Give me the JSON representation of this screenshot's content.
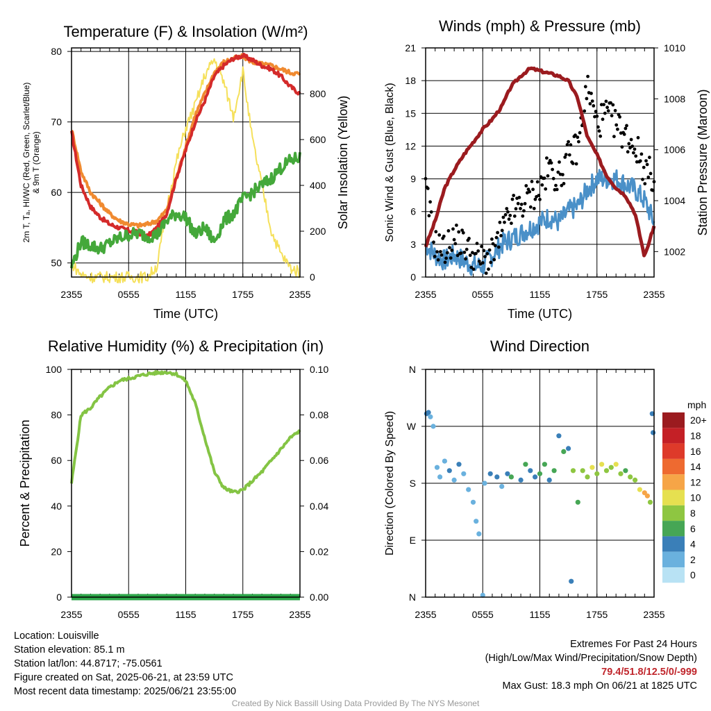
{
  "charts": {
    "temp": {
      "title": "Temperature (F) & Insolation (W/m²)",
      "ylabel_left": "2m T, Tₐ, HI/WC (Red, Green, Scarlet/Blue) & 9m T (Orange)",
      "ylabel_left_line1": "2m T, Tₐ, HI/WC (Red, Green, Scarlet/Blue)",
      "ylabel_left_line2": "& 9m T (Orange)",
      "ylabel_right": "Solar Insolation (Yellow)",
      "xlabel": "Time (UTC)",
      "xticks": [
        "2355",
        "0555",
        "1155",
        "1755",
        "2355"
      ],
      "yticks_left": [
        "50",
        "60",
        "70",
        "80"
      ],
      "yticks_right": [
        "0",
        "200",
        "400",
        "600",
        "800"
      ]
    },
    "wind": {
      "title": "Winds (mph) & Pressure (mb)",
      "ylabel_left": "Sonic Wind & Gust (Blue, Black)",
      "ylabel_right": "Station Pressure (Maroon)",
      "xlabel": "Time (UTC)",
      "xticks": [
        "2355",
        "0555",
        "1155",
        "1755",
        "2355"
      ],
      "yticks_left": [
        "0",
        "3",
        "6",
        "9",
        "12",
        "15",
        "18",
        "21"
      ],
      "yticks_right": [
        "1002",
        "1004",
        "1006",
        "1008",
        "1010"
      ]
    },
    "rh": {
      "title": "Relative Humidity (%) & Precipitation (in)",
      "ylabel_left": "Percent & Precipitation",
      "xticks": [
        "2355",
        "0555",
        "1155",
        "1755",
        "2355"
      ],
      "yticks_left": [
        "0",
        "20",
        "40",
        "60",
        "80",
        "100"
      ],
      "yticks_right": [
        "0.00",
        "0.02",
        "0.04",
        "0.06",
        "0.08",
        "0.10"
      ]
    },
    "dir": {
      "title": "Wind Direction",
      "ylabel_left": "Direction (Colored By Speed)",
      "xticks": [
        "2355",
        "0555",
        "1155",
        "1755",
        "2355"
      ],
      "yticks_left": [
        "N",
        "E",
        "S",
        "W",
        "N"
      ],
      "legend_title": "mph",
      "legend_labels": [
        "20+",
        "18",
        "16",
        "14",
        "12",
        "10",
        "8",
        "6",
        "4",
        "2",
        "0"
      ],
      "legend_colors": [
        "#9b1b1f",
        "#c42026",
        "#de3a2a",
        "#ee6a30",
        "#f6a547",
        "#e6e050",
        "#8ec641",
        "#46a655",
        "#3a7fb8",
        "#6ab1de",
        "#b8e2f4"
      ]
    }
  },
  "chart_data": [
    {
      "type": "line",
      "title": "Temperature (F) & Insolation (W/m²)",
      "xlabel": "Time (UTC)",
      "ylabel": "2m T, Tₐ, HI/WC (Red, Green, Scarlet/Blue) & 9m T (Orange)",
      "y2label": "Solar Insolation (Yellow)",
      "x": [
        0,
        1,
        2,
        3,
        4,
        5,
        6,
        7,
        8,
        9,
        10,
        11,
        12,
        13,
        14,
        15,
        16,
        17,
        18,
        19,
        20,
        21,
        22,
        23,
        24
      ],
      "xlim": [
        0,
        24
      ],
      "ylim": [
        48,
        80.5
      ],
      "y2lim": [
        0,
        1000
      ],
      "series": [
        {
          "color": "#d42a2a",
          "axis": "left",
          "values": [
            68.5,
            61,
            58,
            56.5,
            55.5,
            55,
            54.6,
            54.3,
            53.8,
            55,
            57,
            62,
            66,
            70,
            73,
            76.5,
            78,
            79,
            79.4,
            78.8,
            78,
            77.5,
            76.5,
            75,
            74
          ]
        },
        {
          "color": "#f08a30",
          "axis": "left",
          "values": [
            69,
            63,
            60,
            58.5,
            57,
            56,
            55.5,
            55.3,
            55.5,
            56,
            57.5,
            62,
            66.5,
            71,
            74,
            77,
            78.5,
            79,
            79.3,
            78.5,
            78.2,
            78,
            77.5,
            77,
            76.8
          ]
        },
        {
          "color": "#44a83a",
          "axis": "left",
          "values": [
            49.5,
            53,
            52.5,
            52,
            52.8,
            53.5,
            54,
            54.2,
            53.8,
            54,
            56,
            57,
            56.5,
            54,
            55,
            53,
            56,
            57,
            59,
            60,
            61,
            62,
            63.5,
            64.5,
            65
          ]
        },
        {
          "color": "#f5e05a",
          "axis": "right",
          "values": [
            60,
            10,
            0,
            0,
            0,
            0,
            0,
            0,
            0,
            50,
            300,
            500,
            650,
            750,
            880,
            950,
            850,
            700,
            900,
            600,
            400,
            200,
            100,
            40,
            20
          ]
        }
      ]
    },
    {
      "type": "line",
      "title": "Winds (mph) & Pressure (mb)",
      "xlabel": "Time (UTC)",
      "ylabel": "Sonic Wind & Gust (Blue, Black)",
      "y2label": "Station Pressure (Maroon)",
      "x": [
        0,
        1,
        2,
        3,
        4,
        5,
        6,
        7,
        8,
        9,
        10,
        11,
        12,
        13,
        14,
        15,
        16,
        17,
        18,
        19,
        20,
        21,
        22,
        23,
        24
      ],
      "xlim": [
        0,
        24
      ],
      "ylim": [
        0,
        21
      ],
      "y2lim": [
        1001,
        1010
      ],
      "series": [
        {
          "name": "",
          "color": "#4a90c8",
          "axis": "left",
          "values": [
            3,
            2,
            1.5,
            2,
            1.5,
            1,
            1,
            2,
            3,
            3.5,
            4,
            4.5,
            5,
            5.5,
            5,
            6,
            6.5,
            8,
            9,
            9,
            9,
            8.5,
            8,
            7,
            5
          ]
        },
        {
          "name": "",
          "color": "#000000",
          "axis": "left",
          "marker": "dot",
          "values": [
            8,
            3,
            2.5,
            3.5,
            3,
            2,
            1.5,
            2,
            4,
            6,
            6.5,
            7.5,
            8,
            10,
            9,
            11,
            12,
            17.5,
            14,
            15,
            14,
            13,
            12,
            10,
            9
          ]
        },
        {
          "name": "",
          "color": "#9b1b1f",
          "axis": "right",
          "values": [
            1002.2,
            1003.2,
            1004.5,
            1005.2,
            1005.8,
            1006.3,
            1006.8,
            1007.2,
            1007.7,
            1008.5,
            1008.9,
            1009.2,
            1009.1,
            1009.0,
            1008.9,
            1008.7,
            1008.0,
            1006.5,
            1005.8,
            1005.0,
            1004.5,
            1004.2,
            1003.5,
            1001.8,
            1003.0
          ]
        }
      ]
    },
    {
      "type": "line",
      "title": "Relative Humidity (%) & Precipitation (in)",
      "ylabel": "Percent & Precipitation",
      "x": [
        0,
        1,
        2,
        3,
        4,
        5,
        6,
        7,
        8,
        9,
        10,
        11,
        12,
        13,
        14,
        15,
        16,
        17,
        18,
        19,
        20,
        21,
        22,
        23,
        24
      ],
      "xlim": [
        0,
        24
      ],
      "ylim": [
        0,
        100
      ],
      "y2lim": [
        0,
        0.1
      ],
      "series": [
        {
          "color": "#84c444",
          "axis": "left",
          "values": [
            50,
            80,
            83,
            88,
            92,
            95,
            96,
            97,
            98,
            98.5,
            98.8,
            98,
            95,
            85,
            70,
            55,
            48,
            46,
            47,
            51,
            55,
            60,
            65,
            70,
            73
          ]
        },
        {
          "color": "#2ea64a",
          "axis": "right",
          "values": [
            0,
            0,
            0,
            0,
            0,
            0,
            0,
            0,
            0,
            0,
            0,
            0,
            0,
            0,
            0,
            0,
            0,
            0,
            0,
            0,
            0,
            0,
            0,
            0,
            0
          ]
        }
      ]
    },
    {
      "type": "scatter",
      "title": "Wind Direction",
      "ylabel": "Direction (Colored By Speed)",
      "xlim": [
        0,
        24
      ],
      "ylim": [
        0,
        360
      ],
      "points": [
        {
          "x": 0.1,
          "y": 290,
          "spd": 4
        },
        {
          "x": 0.3,
          "y": 292,
          "spd": 3
        },
        {
          "x": 0.5,
          "y": 285,
          "spd": 2
        },
        {
          "x": 0.8,
          "y": 270,
          "spd": 1
        },
        {
          "x": 1.2,
          "y": 205,
          "spd": 1
        },
        {
          "x": 1.5,
          "y": 190,
          "spd": 2
        },
        {
          "x": 2,
          "y": 215,
          "spd": 2
        },
        {
          "x": 2.5,
          "y": 200,
          "spd": 3
        },
        {
          "x": 3,
          "y": 185,
          "spd": 1
        },
        {
          "x": 3.5,
          "y": 210,
          "spd": 4
        },
        {
          "x": 4,
          "y": 195,
          "spd": 2
        },
        {
          "x": 4.5,
          "y": 170,
          "spd": 1
        },
        {
          "x": 5,
          "y": 150,
          "spd": 1
        },
        {
          "x": 5.3,
          "y": 120,
          "spd": 2
        },
        {
          "x": 5.6,
          "y": 100,
          "spd": 1
        },
        {
          "x": 6,
          "y": 3,
          "spd": 1
        },
        {
          "x": 6.2,
          "y": 180,
          "spd": 2
        },
        {
          "x": 6.8,
          "y": 195,
          "spd": 3
        },
        {
          "x": 7.5,
          "y": 190,
          "spd": 4
        },
        {
          "x": 8,
          "y": 175,
          "spd": 2
        },
        {
          "x": 8.6,
          "y": 195,
          "spd": 4
        },
        {
          "x": 9,
          "y": 190,
          "spd": 5
        },
        {
          "x": 10,
          "y": 185,
          "spd": 4
        },
        {
          "x": 10.5,
          "y": 210,
          "spd": 5
        },
        {
          "x": 11,
          "y": 200,
          "spd": 3
        },
        {
          "x": 11.5,
          "y": 190,
          "spd": 4
        },
        {
          "x": 12,
          "y": 195,
          "spd": 5
        },
        {
          "x": 12.5,
          "y": 210,
          "spd": 6
        },
        {
          "x": 13,
          "y": 185,
          "spd": 4
        },
        {
          "x": 13.5,
          "y": 200,
          "spd": 5
        },
        {
          "x": 14,
          "y": 255,
          "spd": 4
        },
        {
          "x": 14.5,
          "y": 230,
          "spd": 5
        },
        {
          "x": 15,
          "y": 235,
          "spd": 4
        },
        {
          "x": 15.3,
          "y": 25,
          "spd": 4
        },
        {
          "x": 15.5,
          "y": 200,
          "spd": 7
        },
        {
          "x": 16,
          "y": 150,
          "spd": 6
        },
        {
          "x": 16.5,
          "y": 200,
          "spd": 8
        },
        {
          "x": 17,
          "y": 190,
          "spd": 7
        },
        {
          "x": 17.5,
          "y": 205,
          "spd": 9
        },
        {
          "x": 18,
          "y": 195,
          "spd": 8
        },
        {
          "x": 18.5,
          "y": 210,
          "spd": 9
        },
        {
          "x": 19,
          "y": 200,
          "spd": 7
        },
        {
          "x": 19.5,
          "y": 205,
          "spd": 8
        },
        {
          "x": 20,
          "y": 210,
          "spd": 9
        },
        {
          "x": 20.5,
          "y": 195,
          "spd": 7
        },
        {
          "x": 21,
          "y": 200,
          "spd": 6
        },
        {
          "x": 21.5,
          "y": 190,
          "spd": 8
        },
        {
          "x": 22,
          "y": 185,
          "spd": 7
        },
        {
          "x": 22.5,
          "y": 170,
          "spd": 9
        },
        {
          "x": 23,
          "y": 165,
          "spd": 11
        },
        {
          "x": 23.3,
          "y": 160,
          "spd": 12
        },
        {
          "x": 23.6,
          "y": 150,
          "spd": 7
        },
        {
          "x": 23.8,
          "y": 290,
          "spd": 4
        },
        {
          "x": 23.9,
          "y": 260,
          "spd": 4
        }
      ]
    }
  ],
  "info": {
    "location": "Location: Louisville",
    "elevation": "Station elevation: 85.1 m",
    "latlon": "Station lat/lon: 44.8717; -75.0561",
    "created": "Figure created on Sat, 2025-06-21, at 23:59 UTC",
    "recent": "Most recent data timestamp: 2025/06/21 23:55:00",
    "extremes_title": "Extremes For Past 24 Hours",
    "extremes_sub": "(High/Low/Max Wind/Precipitation/Snow Depth)",
    "extremes_values": "79.4/51.8/12.5/0/-999",
    "max_gust": "Max Gust: 18.3 mph On 06/21 at 1825 UTC",
    "credit": "Created By Nick Bassill Using Data Provided By The NYS Mesonet"
  }
}
